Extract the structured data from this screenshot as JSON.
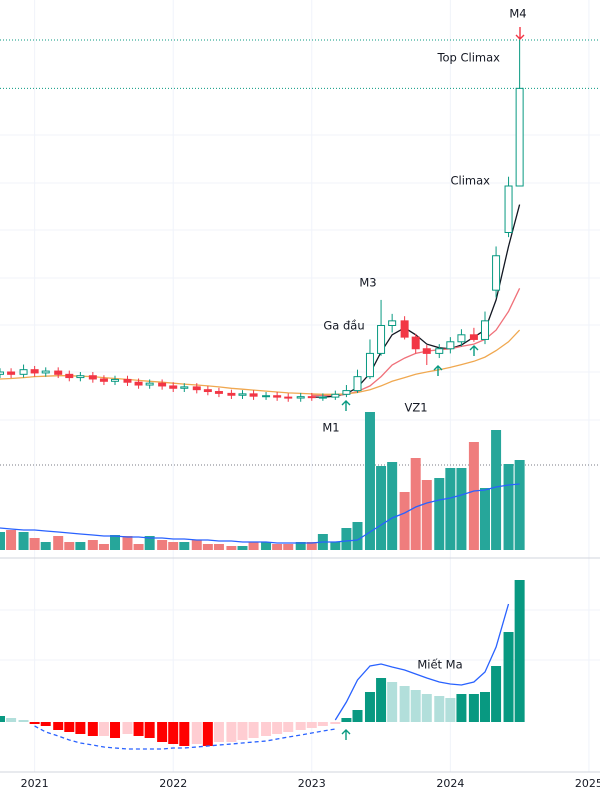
{
  "chart_data": [
    {
      "type": "candlestick",
      "xlim": [
        2020.75,
        2025.08
      ],
      "ylim": [
        0,
        100
      ],
      "x": [
        2020.75,
        2020.83,
        2020.92,
        2021.0,
        2021.08,
        2021.17,
        2021.25,
        2021.33,
        2021.42,
        2021.5,
        2021.58,
        2021.67,
        2021.75,
        2021.83,
        2021.92,
        2022.0,
        2022.08,
        2022.17,
        2022.25,
        2022.33,
        2022.42,
        2022.5,
        2022.58,
        2022.67,
        2022.75,
        2022.83,
        2022.92,
        2023.0,
        2023.08,
        2023.17,
        2023.25,
        2023.33,
        2023.42,
        2023.5,
        2023.58,
        2023.67,
        2023.75,
        2023.83,
        2023.92,
        2024.0,
        2024.08,
        2024.17,
        2024.25,
        2024.33,
        2024.42,
        2024.5
      ],
      "open": [
        19.5,
        20,
        19.5,
        20.5,
        19.8,
        20.2,
        19.5,
        18.8,
        19.2,
        18.5,
        18.0,
        18.4,
        17.8,
        17.2,
        17.6,
        17.0,
        16.5,
        16.8,
        16.2,
        15.8,
        15.4,
        15.0,
        15.3,
        14.8,
        14.9,
        14.6,
        14.4,
        14.7,
        14.5,
        14.6,
        15.2,
        16.0,
        19.0,
        24.0,
        30.0,
        31.0,
        27.5,
        25.0,
        24.0,
        25.0,
        26.5,
        28.0,
        27.0,
        37.6,
        50.0,
        60.0
      ],
      "high": [
        20.8,
        20.8,
        21.6,
        21.3,
        21.0,
        21.0,
        20.3,
        20.0,
        20.0,
        19.3,
        19.2,
        19.2,
        18.6,
        18.4,
        18.4,
        17.8,
        17.6,
        17.6,
        17.0,
        16.6,
        16.2,
        16.1,
        16.1,
        15.7,
        15.7,
        15.4,
        15.5,
        15.5,
        15.4,
        16.0,
        17.2,
        20.5,
        27.0,
        35.5,
        32.5,
        32.0,
        28.2,
        25.8,
        26.0,
        27.5,
        29.2,
        29.5,
        33.0,
        47.0,
        62.0,
        91.4
      ],
      "low": [
        18.7,
        18.7,
        18.8,
        19.0,
        19.0,
        18.7,
        18.0,
        18.0,
        17.7,
        17.2,
        17.2,
        17.0,
        16.4,
        16.4,
        16.2,
        15.7,
        15.7,
        15.4,
        15.0,
        14.6,
        14.2,
        14.2,
        14.0,
        14.0,
        13.8,
        13.6,
        13.6,
        13.8,
        13.8,
        14.0,
        14.6,
        15.5,
        18.5,
        23.5,
        28.5,
        27.0,
        24.0,
        21.5,
        23.0,
        24.0,
        25.5,
        26.5,
        26.0,
        36.0,
        49.0,
        60.0
      ],
      "close": [
        20,
        19.5,
        20.5,
        19.8,
        20.2,
        19.5,
        18.8,
        19.2,
        18.5,
        18.0,
        18.4,
        17.8,
        17.2,
        17.6,
        17.0,
        16.5,
        16.8,
        16.2,
        15.8,
        15.4,
        15.0,
        15.3,
        14.8,
        14.9,
        14.6,
        14.4,
        14.7,
        14.5,
        14.6,
        15.2,
        16.0,
        19.0,
        24.0,
        30.0,
        31.0,
        27.5,
        25.0,
        24.0,
        25.0,
        26.5,
        28.0,
        27.0,
        31.0,
        45.0,
        60.0,
        81.0
      ],
      "up_color": "#089981",
      "down_color": "#f23645",
      "series": [
        {
          "color": "#131722",
          "values": [
            null,
            null,
            null,
            null,
            null,
            null,
            null,
            null,
            null,
            null,
            null,
            null,
            null,
            null,
            null,
            null,
            null,
            null,
            null,
            null,
            null,
            null,
            null,
            null,
            null,
            null,
            null,
            14.6,
            14.6,
            14.8,
            15.3,
            16.7,
            19.7,
            24.3,
            28.0,
            29.5,
            28.0,
            26.0,
            25.2,
            25.0,
            25.8,
            27.5,
            29.0,
            35.5,
            47.0,
            56.0
          ]
        },
        {
          "color": "#f0717a",
          "values": [
            null,
            null,
            null,
            null,
            null,
            null,
            null,
            null,
            null,
            null,
            null,
            null,
            null,
            null,
            null,
            null,
            null,
            null,
            null,
            null,
            null,
            null,
            null,
            null,
            null,
            null,
            null,
            15.0,
            15.0,
            15.0,
            15.2,
            15.8,
            17.0,
            19.0,
            21.5,
            23.0,
            24.0,
            24.5,
            24.8,
            25.0,
            25.5,
            26.0,
            27.0,
            29.0,
            33.0,
            38.0
          ]
        },
        {
          "color": "#f0a850",
          "values": [
            18.5,
            18.6,
            18.8,
            19.0,
            19.1,
            19.2,
            19.2,
            19.1,
            19.0,
            18.8,
            18.6,
            18.4,
            18.2,
            18.0,
            17.8,
            17.6,
            17.4,
            17.2,
            17.0,
            16.8,
            16.5,
            16.3,
            16.1,
            15.9,
            15.7,
            15.5,
            15.4,
            15.3,
            15.2,
            15.2,
            15.3,
            15.6,
            16.2,
            17.0,
            18.0,
            18.8,
            19.5,
            20.0,
            20.5,
            21.0,
            21.6,
            22.3,
            23.2,
            24.6,
            26.5,
            29.0
          ]
        }
      ],
      "annotations": [
        "M4",
        "Top Climax",
        "Climax",
        "M3",
        "Ga đầu",
        "VZ1",
        "M1"
      ]
    },
    {
      "type": "bar",
      "xlim": [
        2020.75,
        2025.08
      ],
      "ylim": [
        0,
        140
      ],
      "x": [
        2020.75,
        2020.83,
        2020.92,
        2021.0,
        2021.08,
        2021.17,
        2021.25,
        2021.33,
        2021.42,
        2021.5,
        2021.58,
        2021.67,
        2021.75,
        2021.83,
        2021.92,
        2022.0,
        2022.08,
        2022.17,
        2022.25,
        2022.33,
        2022.42,
        2022.5,
        2022.58,
        2022.67,
        2022.75,
        2022.83,
        2022.92,
        2023.0,
        2023.08,
        2023.17,
        2023.25,
        2023.33,
        2023.42,
        2023.5,
        2023.58,
        2023.67,
        2023.75,
        2023.83,
        2023.92,
        2024.0,
        2024.08,
        2024.17,
        2024.25,
        2024.33,
        2024.42,
        2024.5
      ],
      "values": [
        18,
        20,
        18,
        12,
        8,
        14,
        8,
        8,
        10,
        6,
        15,
        14,
        6,
        14,
        10,
        8,
        8,
        10,
        6,
        6,
        4,
        4,
        8,
        8,
        6,
        6,
        8,
        8,
        16,
        8,
        22,
        28,
        138,
        84,
        88,
        58,
        92,
        70,
        72,
        82,
        82,
        108,
        62,
        120,
        86,
        90
      ],
      "up_color": "#26a69a",
      "down_color": "#ef7d7d",
      "series": [
        {
          "color": "#2962ff",
          "values": [
            22,
            21,
            20,
            20,
            19,
            18,
            17,
            16,
            15,
            14,
            14,
            13,
            13,
            12,
            12,
            11,
            11,
            10,
            10,
            9,
            9,
            8,
            8,
            8,
            7,
            7,
            7,
            7,
            8,
            8,
            9,
            10,
            18,
            25,
            32,
            37,
            43,
            47,
            50,
            52,
            55,
            59,
            60,
            63,
            65,
            66
          ]
        }
      ]
    },
    {
      "type": "histogram",
      "xlim": [
        2020.75,
        2025.08
      ],
      "ylim": [
        -48,
        157
      ],
      "xticks": [
        2021,
        2022,
        2023,
        2024,
        2025
      ],
      "x": [
        2020.75,
        2020.83,
        2020.92,
        2021.0,
        2021.08,
        2021.17,
        2021.25,
        2021.33,
        2021.42,
        2021.5,
        2021.58,
        2021.67,
        2021.75,
        2021.83,
        2021.92,
        2022.0,
        2022.08,
        2022.17,
        2022.25,
        2022.33,
        2022.42,
        2022.5,
        2022.58,
        2022.67,
        2022.75,
        2022.83,
        2022.92,
        2023.0,
        2023.08,
        2023.17,
        2023.25,
        2023.33,
        2023.42,
        2023.5,
        2023.58,
        2023.67,
        2023.75,
        2023.83,
        2023.92,
        2024.0,
        2024.08,
        2024.17,
        2024.25,
        2024.33,
        2024.42,
        2024.5
      ],
      "values": [
        6,
        4,
        2,
        -2,
        -4,
        -8,
        -10,
        -12,
        -14,
        -14,
        -16,
        -12,
        -14,
        -16,
        -20,
        -22,
        -24,
        -22,
        -24,
        -20,
        -20,
        -18,
        -16,
        -14,
        -12,
        -10,
        -8,
        -6,
        -4,
        -2,
        4,
        12,
        30,
        44,
        40,
        36,
        32,
        28,
        26,
        24,
        28,
        28,
        30,
        56,
        90,
        142
      ],
      "rising_color": "#089981",
      "falling_color": "#b2dfdb",
      "negative_falling_color": "#ff0000",
      "negative_rising_color": "#ffcdd2",
      "series": [
        {
          "color": "#2962ff",
          "dashed": false,
          "values": [
            null,
            null,
            null,
            null,
            null,
            null,
            null,
            null,
            null,
            null,
            null,
            null,
            null,
            null,
            null,
            null,
            null,
            null,
            null,
            null,
            null,
            null,
            null,
            null,
            null,
            null,
            null,
            null,
            null,
            2,
            20,
            42,
            56,
            58,
            55,
            52,
            48,
            44,
            40,
            38,
            37,
            40,
            50,
            75,
            118,
            null
          ]
        },
        {
          "color": "#2962ff",
          "dashed": true,
          "values": [
            null,
            null,
            null,
            -4,
            -10,
            -14,
            -18,
            -21,
            -23,
            -25,
            -26,
            -27,
            -27,
            -27,
            -27,
            -26,
            -26,
            -25,
            -24,
            -23,
            -22,
            -21,
            -20,
            -19,
            -17,
            -15,
            -13,
            -11,
            -9,
            -7,
            null,
            null,
            null,
            null,
            null,
            null,
            null,
            null,
            null,
            null,
            null,
            null,
            null,
            null,
            null,
            null
          ]
        }
      ],
      "annotations": [
        "Miết Ma"
      ]
    }
  ]
}
